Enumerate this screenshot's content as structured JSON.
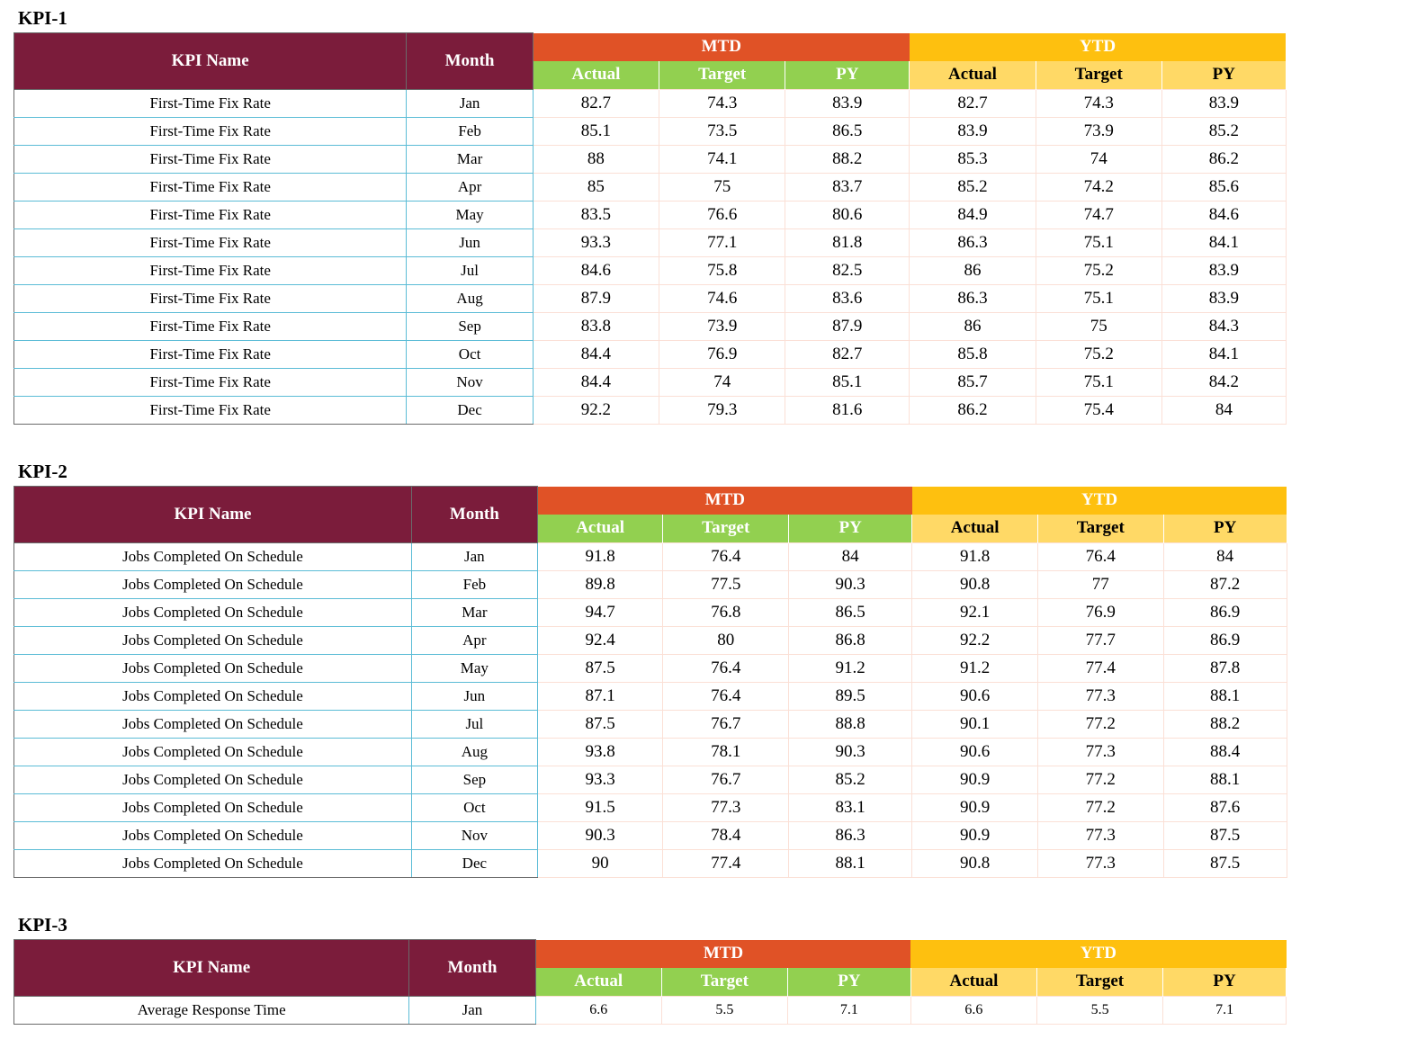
{
  "headers": {
    "kpi_name": "KPI Name",
    "month": "Month",
    "mtd": "MTD",
    "ytd": "YTD",
    "actual": "Actual",
    "target": "Target",
    "py": "PY"
  },
  "colors": {
    "header_maroon": "#7b1c3b",
    "mtd_orange": "#e05226",
    "ytd_yellow": "#fec00f",
    "mtd_sub_green": "#92d050",
    "ytd_sub_gold": "#ffd966"
  },
  "kpis": [
    {
      "title": "KPI-1",
      "rows": [
        {
          "name": "First-Time Fix Rate",
          "month": "Jan",
          "mtd_actual": "82.7",
          "mtd_target": "74.3",
          "mtd_py": "83.9",
          "ytd_actual": "82.7",
          "ytd_target": "74.3",
          "ytd_py": "83.9"
        },
        {
          "name": "First-Time Fix Rate",
          "month": "Feb",
          "mtd_actual": "85.1",
          "mtd_target": "73.5",
          "mtd_py": "86.5",
          "ytd_actual": "83.9",
          "ytd_target": "73.9",
          "ytd_py": "85.2"
        },
        {
          "name": "First-Time Fix Rate",
          "month": "Mar",
          "mtd_actual": "88",
          "mtd_target": "74.1",
          "mtd_py": "88.2",
          "ytd_actual": "85.3",
          "ytd_target": "74",
          "ytd_py": "86.2"
        },
        {
          "name": "First-Time Fix Rate",
          "month": "Apr",
          "mtd_actual": "85",
          "mtd_target": "75",
          "mtd_py": "83.7",
          "ytd_actual": "85.2",
          "ytd_target": "74.2",
          "ytd_py": "85.6"
        },
        {
          "name": "First-Time Fix Rate",
          "month": "May",
          "mtd_actual": "83.5",
          "mtd_target": "76.6",
          "mtd_py": "80.6",
          "ytd_actual": "84.9",
          "ytd_target": "74.7",
          "ytd_py": "84.6"
        },
        {
          "name": "First-Time Fix Rate",
          "month": "Jun",
          "mtd_actual": "93.3",
          "mtd_target": "77.1",
          "mtd_py": "81.8",
          "ytd_actual": "86.3",
          "ytd_target": "75.1",
          "ytd_py": "84.1"
        },
        {
          "name": "First-Time Fix Rate",
          "month": "Jul",
          "mtd_actual": "84.6",
          "mtd_target": "75.8",
          "mtd_py": "82.5",
          "ytd_actual": "86",
          "ytd_target": "75.2",
          "ytd_py": "83.9"
        },
        {
          "name": "First-Time Fix Rate",
          "month": "Aug",
          "mtd_actual": "87.9",
          "mtd_target": "74.6",
          "mtd_py": "83.6",
          "ytd_actual": "86.3",
          "ytd_target": "75.1",
          "ytd_py": "83.9"
        },
        {
          "name": "First-Time Fix Rate",
          "month": "Sep",
          "mtd_actual": "83.8",
          "mtd_target": "73.9",
          "mtd_py": "87.9",
          "ytd_actual": "86",
          "ytd_target": "75",
          "ytd_py": "84.3"
        },
        {
          "name": "First-Time Fix Rate",
          "month": "Oct",
          "mtd_actual": "84.4",
          "mtd_target": "76.9",
          "mtd_py": "82.7",
          "ytd_actual": "85.8",
          "ytd_target": "75.2",
          "ytd_py": "84.1"
        },
        {
          "name": "First-Time Fix Rate",
          "month": "Nov",
          "mtd_actual": "84.4",
          "mtd_target": "74",
          "mtd_py": "85.1",
          "ytd_actual": "85.7",
          "ytd_target": "75.1",
          "ytd_py": "84.2"
        },
        {
          "name": "First-Time Fix Rate",
          "month": "Dec",
          "mtd_actual": "92.2",
          "mtd_target": "79.3",
          "mtd_py": "81.6",
          "ytd_actual": "86.2",
          "ytd_target": "75.4",
          "ytd_py": "84"
        }
      ]
    },
    {
      "title": "KPI-2",
      "rows": [
        {
          "name": "Jobs Completed On Schedule",
          "month": "Jan",
          "mtd_actual": "91.8",
          "mtd_target": "76.4",
          "mtd_py": "84",
          "ytd_actual": "91.8",
          "ytd_target": "76.4",
          "ytd_py": "84"
        },
        {
          "name": "Jobs Completed On Schedule",
          "month": "Feb",
          "mtd_actual": "89.8",
          "mtd_target": "77.5",
          "mtd_py": "90.3",
          "ytd_actual": "90.8",
          "ytd_target": "77",
          "ytd_py": "87.2"
        },
        {
          "name": "Jobs Completed On Schedule",
          "month": "Mar",
          "mtd_actual": "94.7",
          "mtd_target": "76.8",
          "mtd_py": "86.5",
          "ytd_actual": "92.1",
          "ytd_target": "76.9",
          "ytd_py": "86.9"
        },
        {
          "name": "Jobs Completed On Schedule",
          "month": "Apr",
          "mtd_actual": "92.4",
          "mtd_target": "80",
          "mtd_py": "86.8",
          "ytd_actual": "92.2",
          "ytd_target": "77.7",
          "ytd_py": "86.9"
        },
        {
          "name": "Jobs Completed On Schedule",
          "month": "May",
          "mtd_actual": "87.5",
          "mtd_target": "76.4",
          "mtd_py": "91.2",
          "ytd_actual": "91.2",
          "ytd_target": "77.4",
          "ytd_py": "87.8"
        },
        {
          "name": "Jobs Completed On Schedule",
          "month": "Jun",
          "mtd_actual": "87.1",
          "mtd_target": "76.4",
          "mtd_py": "89.5",
          "ytd_actual": "90.6",
          "ytd_target": "77.3",
          "ytd_py": "88.1"
        },
        {
          "name": "Jobs Completed On Schedule",
          "month": "Jul",
          "mtd_actual": "87.5",
          "mtd_target": "76.7",
          "mtd_py": "88.8",
          "ytd_actual": "90.1",
          "ytd_target": "77.2",
          "ytd_py": "88.2"
        },
        {
          "name": "Jobs Completed On Schedule",
          "month": "Aug",
          "mtd_actual": "93.8",
          "mtd_target": "78.1",
          "mtd_py": "90.3",
          "ytd_actual": "90.6",
          "ytd_target": "77.3",
          "ytd_py": "88.4"
        },
        {
          "name": "Jobs Completed On Schedule",
          "month": "Sep",
          "mtd_actual": "93.3",
          "mtd_target": "76.7",
          "mtd_py": "85.2",
          "ytd_actual": "90.9",
          "ytd_target": "77.2",
          "ytd_py": "88.1"
        },
        {
          "name": "Jobs Completed On Schedule",
          "month": "Oct",
          "mtd_actual": "91.5",
          "mtd_target": "77.3",
          "mtd_py": "83.1",
          "ytd_actual": "90.9",
          "ytd_target": "77.2",
          "ytd_py": "87.6"
        },
        {
          "name": "Jobs Completed On Schedule",
          "month": "Nov",
          "mtd_actual": "90.3",
          "mtd_target": "78.4",
          "mtd_py": "86.3",
          "ytd_actual": "90.9",
          "ytd_target": "77.3",
          "ytd_py": "87.5"
        },
        {
          "name": "Jobs Completed On Schedule",
          "month": "Dec",
          "mtd_actual": "90",
          "mtd_target": "77.4",
          "mtd_py": "88.1",
          "ytd_actual": "90.8",
          "ytd_target": "77.3",
          "ytd_py": "87.5"
        }
      ]
    },
    {
      "title": "KPI-3",
      "rows": [
        {
          "name": "Average Response Time",
          "month": "Jan",
          "mtd_actual": "6.6",
          "mtd_target": "5.5",
          "mtd_py": "7.1",
          "ytd_actual": "6.6",
          "ytd_target": "5.5",
          "ytd_py": "7.1"
        }
      ]
    }
  ]
}
